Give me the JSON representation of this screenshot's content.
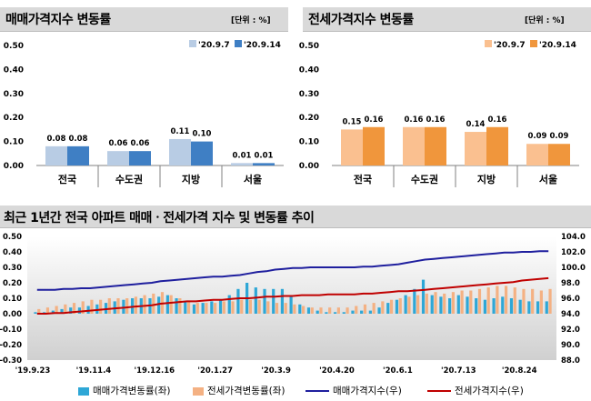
{
  "colors": {
    "sale_prev": "#b8cce4",
    "sale_curr": "#3f7fc4",
    "jeonse_prev": "#fac090",
    "jeonse_curr": "#f0963c",
    "bottom_sale_bar": "#2ea7d6",
    "bottom_jeonse_bar": "#f4b183",
    "sale_index_line": "#1f1f9e",
    "jeonse_index_line": "#c00000"
  },
  "panels": {
    "sale": {
      "title": "매매가격지수 변동률",
      "unit": "[단위 : %]"
    },
    "jeonse": {
      "title": "전세가격지수 변동률",
      "unit": "[단위 : %]"
    },
    "trend": {
      "title": "최근 1년간 전국 아파트 매매ㆍ전세가격 지수 및 변동률 추이"
    }
  },
  "chart_data": [
    {
      "type": "bar",
      "title": "매매가격지수 변동률",
      "unit": "[단위 : %]",
      "categories": [
        "전국",
        "수도권",
        "지방",
        "서울"
      ],
      "series": [
        {
          "name": "'20.9.7",
          "values": [
            0.08,
            0.06,
            0.11,
            0.01
          ]
        },
        {
          "name": "'20.9.14",
          "values": [
            0.08,
            0.06,
            0.1,
            0.01
          ]
        }
      ],
      "yticks": [
        "0.00",
        "0.10",
        "0.20",
        "0.30",
        "0.40",
        "0.50"
      ],
      "ylim": [
        0,
        0.5
      ],
      "legend": "top-right"
    },
    {
      "type": "bar",
      "title": "전세가격지수 변동률",
      "unit": "[단위 : %]",
      "categories": [
        "전국",
        "수도권",
        "지방",
        "서울"
      ],
      "series": [
        {
          "name": "'20.9.7",
          "values": [
            0.15,
            0.16,
            0.14,
            0.09
          ]
        },
        {
          "name": "'20.9.14",
          "values": [
            0.16,
            0.16,
            0.16,
            0.09
          ]
        }
      ],
      "yticks": [
        "0.00",
        "0.10",
        "0.20",
        "0.30",
        "0.40",
        "0.50"
      ],
      "ylim": [
        0,
        0.5
      ],
      "legend": "top-right"
    },
    {
      "type": "bar",
      "title": "최근 1년간 전국 아파트 매매ㆍ전세가격 지수 및 변동률 추이",
      "x_ticks": [
        "'19.9.23",
        "'19.11.4",
        "'19.12.16",
        "'20.1.27",
        "'20.3.9",
        "'20.4.20",
        "'20.6.1",
        "'20.7.13",
        "'20.8.24"
      ],
      "left_yticks": [
        "-0.30",
        "-0.20",
        "-0.10",
        "0.00",
        "0.10",
        "0.20",
        "0.30",
        "0.40",
        "0.50"
      ],
      "right_yticks": [
        "88.0",
        "90.0",
        "92.0",
        "94.0",
        "96.0",
        "98.0",
        "100.0",
        "102.0",
        "104.0"
      ],
      "left_ylim": [
        -0.3,
        0.5
      ],
      "right_ylim": [
        88.0,
        104.0
      ],
      "legend": "bottom",
      "series": [
        {
          "name": "매매가격변동률(좌)",
          "axis": "left",
          "kind": "bar",
          "values": [
            0.01,
            0.01,
            0.02,
            0.03,
            0.04,
            0.04,
            0.05,
            0.06,
            0.07,
            0.08,
            0.09,
            0.1,
            0.1,
            0.1,
            0.11,
            0.12,
            0.1,
            0.08,
            0.06,
            0.07,
            0.08,
            0.09,
            0.12,
            0.16,
            0.2,
            0.17,
            0.16,
            0.16,
            0.16,
            0.11,
            0.06,
            0.04,
            0.02,
            0.01,
            0.01,
            0.01,
            0.02,
            0.02,
            0.02,
            0.04,
            0.07,
            0.09,
            0.12,
            0.16,
            0.22,
            0.12,
            0.11,
            0.1,
            0.12,
            0.11,
            0.1,
            0.09,
            0.1,
            0.11,
            0.1,
            0.09,
            0.08,
            0.08,
            0.08
          ]
        },
        {
          "name": "전세가격변동률(좌)",
          "axis": "left",
          "kind": "bar",
          "values": [
            0.03,
            0.04,
            0.05,
            0.06,
            0.07,
            0.08,
            0.09,
            0.09,
            0.1,
            0.1,
            0.1,
            0.11,
            0.12,
            0.13,
            0.14,
            0.12,
            0.1,
            0.08,
            0.07,
            0.07,
            0.07,
            0.08,
            0.08,
            0.09,
            0.09,
            0.09,
            0.08,
            0.07,
            0.07,
            0.06,
            0.05,
            0.04,
            0.04,
            0.04,
            0.04,
            0.04,
            0.05,
            0.06,
            0.07,
            0.08,
            0.09,
            0.1,
            0.11,
            0.12,
            0.13,
            0.14,
            0.13,
            0.14,
            0.15,
            0.15,
            0.16,
            0.17,
            0.18,
            0.18,
            0.17,
            0.16,
            0.16,
            0.15,
            0.16
          ]
        },
        {
          "name": "매매가격지수(우)",
          "axis": "right",
          "kind": "line",
          "values": [
            97.1,
            97.1,
            97.1,
            97.2,
            97.2,
            97.3,
            97.3,
            97.4,
            97.5,
            97.6,
            97.7,
            97.8,
            97.9,
            98.0,
            98.2,
            98.3,
            98.4,
            98.5,
            98.6,
            98.7,
            98.8,
            98.8,
            98.9,
            99.0,
            99.2,
            99.4,
            99.5,
            99.7,
            99.8,
            99.9,
            99.9,
            100.0,
            100.0,
            100.0,
            100.0,
            100.0,
            100.0,
            100.1,
            100.1,
            100.2,
            100.3,
            100.4,
            100.6,
            100.8,
            101.0,
            101.1,
            101.2,
            101.3,
            101.4,
            101.5,
            101.6,
            101.7,
            101.8,
            101.9,
            101.9,
            102.0,
            102.0,
            102.1,
            102.1
          ]
        },
        {
          "name": "전세가격지수(우)",
          "axis": "right",
          "kind": "line",
          "values": [
            94.0,
            94.0,
            94.1,
            94.1,
            94.2,
            94.3,
            94.4,
            94.5,
            94.6,
            94.7,
            94.8,
            94.9,
            95.0,
            95.1,
            95.3,
            95.4,
            95.5,
            95.6,
            95.6,
            95.7,
            95.8,
            95.8,
            95.9,
            96.0,
            96.0,
            96.1,
            96.2,
            96.2,
            96.3,
            96.3,
            96.4,
            96.4,
            96.4,
            96.5,
            96.5,
            96.5,
            96.5,
            96.6,
            96.6,
            96.7,
            96.8,
            96.9,
            96.9,
            97.0,
            97.1,
            97.2,
            97.3,
            97.4,
            97.5,
            97.6,
            97.7,
            97.8,
            97.9,
            98.0,
            98.1,
            98.3,
            98.4,
            98.5,
            98.6
          ]
        }
      ]
    }
  ]
}
